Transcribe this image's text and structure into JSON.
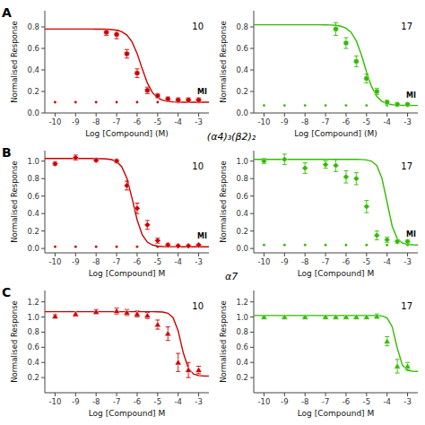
{
  "chart_data": [
    {
      "type": "scatter",
      "title": "A",
      "xlabel": "Log [Compound] (M)",
      "ylabel": "Normalised Response",
      "xlim": [
        -10.5,
        -2.5
      ],
      "ylim": [
        0.0,
        0.95
      ],
      "xticks": [
        -10,
        -9,
        -8,
        -7,
        -6,
        -5,
        -4,
        -3
      ],
      "yticks": [
        {
          "value": 0,
          "label": "0.0"
        },
        0.2,
        0.4,
        0.6,
        0.8
      ],
      "annotations": [
        {
          "text": "10"
        }
      ],
      "series": [
        {
          "name": "MI",
          "type": "scatter",
          "marker": "dot",
          "color": "#cc0000",
          "x": [
            -10,
            -9,
            -8,
            -7,
            -6,
            -5,
            -4,
            -3
          ],
          "values": [
            0.1,
            0.1,
            0.1,
            0.1,
            0.1,
            0.1,
            0.1,
            0.1
          ]
        },
        {
          "type": "line",
          "color": "#cc0000",
          "x": [
            -10.5,
            -10.25,
            -10,
            -9.75,
            -9.5,
            -9.25,
            -9,
            -8.75,
            -8.5,
            -8.25,
            -8,
            -7.75,
            -7.5,
            -7.25,
            -7,
            -6.75,
            -6.5,
            -6.25,
            -6,
            -5.75,
            -5.5,
            -5.25,
            -5,
            -4.75,
            -4.5,
            -4.25,
            -4,
            -3.75,
            -3.5,
            -3.25,
            -3,
            -2.75,
            -2.5
          ],
          "values": [
            0.78,
            0.78,
            0.78,
            0.78,
            0.78,
            0.78,
            0.78,
            0.78,
            0.7799,
            0.7799,
            0.7797,
            0.7792,
            0.7781,
            0.7755,
            0.7694,
            0.7554,
            0.7244,
            0.6614,
            0.553,
            0.4107,
            0.2781,
            0.1885,
            0.1404,
            0.1176,
            0.1075,
            0.1032,
            0.1014,
            0.1006,
            0.1002,
            0.1001,
            0.1,
            0.1,
            0.1
          ]
        },
        {
          "type": "scatter",
          "marker": "circle",
          "color": "#cc0000",
          "x": [
            -7.5,
            -7.0,
            -6.5,
            -6.0,
            -5.5,
            -5.0,
            -4.5,
            -4.0,
            -3.5,
            -3.0
          ],
          "values": [
            0.75,
            0.73,
            0.55,
            0.37,
            0.21,
            0.16,
            0.13,
            0.12,
            0.12,
            0.12
          ],
          "errors": [
            0.03,
            0.04,
            0.04,
            0.04,
            0.03,
            0.02,
            0.02,
            0.02,
            0.02,
            0.02
          ]
        }
      ]
    },
    {
      "type": "scatter",
      "xlabel": "Log [Compound] (M)",
      "ylabel": "Normalised Response",
      "xlim": [
        -10.5,
        -2.5
      ],
      "ylim": [
        0.0,
        0.95
      ],
      "xticks": [
        -10,
        -9,
        -8,
        -7,
        -6,
        -5,
        -4,
        -3
      ],
      "yticks": [
        {
          "value": 0,
          "label": "0.0"
        },
        0.2,
        0.4,
        0.6,
        0.8
      ],
      "annotations": [
        {
          "text": "17"
        }
      ],
      "series": [
        {
          "name": "MI",
          "type": "scatter",
          "marker": "dot",
          "color": "#33bb00",
          "x": [
            -10,
            -9,
            -8,
            -7,
            -6,
            -5,
            -4,
            -3
          ],
          "values": [
            0.07,
            0.07,
            0.07,
            0.07,
            0.07,
            0.07,
            0.07,
            0.07
          ]
        },
        {
          "type": "line",
          "color": "#33bb00",
          "x": [
            -10.5,
            -10.25,
            -10,
            -9.75,
            -9.5,
            -9.25,
            -9,
            -8.75,
            -8.5,
            -8.25,
            -8,
            -7.75,
            -7.5,
            -7.25,
            -7,
            -6.75,
            -6.5,
            -6.25,
            -6,
            -5.75,
            -5.5,
            -5.25,
            -5,
            -4.75,
            -4.5,
            -4.25,
            -4,
            -3.75,
            -3.5,
            -3.25,
            -3,
            -2.75,
            -2.5
          ],
          "values": [
            0.82,
            0.82,
            0.82,
            0.82,
            0.82,
            0.82,
            0.82,
            0.82,
            0.82,
            0.82,
            0.82,
            0.8199,
            0.8198,
            0.8196,
            0.8189,
            0.8175,
            0.8141,
            0.8061,
            0.7879,
            0.7482,
            0.6694,
            0.54,
            0.3809,
            0.2424,
            0.1539,
            0.1078,
            0.0864,
            0.077,
            0.073,
            0.0713,
            0.0705,
            0.0702,
            0.0701
          ]
        },
        {
          "type": "scatter",
          "marker": "circle",
          "color": "#33bb00",
          "x": [
            -6.5,
            -6.0,
            -5.5,
            -5.0,
            -4.5,
            -4.0,
            -3.5,
            -3.0
          ],
          "values": [
            0.78,
            0.65,
            0.48,
            0.32,
            0.2,
            0.1,
            0.08,
            0.08
          ],
          "errors": [
            0.06,
            0.05,
            0.05,
            0.04,
            0.03,
            0.02,
            0.01,
            0.01
          ]
        }
      ]
    },
    {
      "type": "scatter",
      "title": "B",
      "subtitle": "(α4)₃(β2)₂",
      "xlabel": "Log [Compound] M",
      "ylabel": "Normalised Response",
      "xlim": [
        -10.5,
        -2.5
      ],
      "ylim": [
        -0.05,
        1.12
      ],
      "xticks": [
        -10,
        -9,
        -8,
        -7,
        -6,
        -5,
        -4,
        -3
      ],
      "yticks": [
        {
          "value": 0,
          "label": "0.0"
        },
        0.2,
        0.4,
        0.6,
        0.8,
        {
          "value": 1,
          "label": "1.0"
        }
      ],
      "annotations": [
        {
          "text": "10"
        }
      ],
      "series": [
        {
          "name": "MI",
          "type": "scatter",
          "marker": "dot",
          "color": "#cc0000",
          "x": [
            -10,
            -9,
            -8,
            -7,
            -6,
            -5,
            -4,
            -3
          ],
          "values": [
            0.02,
            0.02,
            0.02,
            0.02,
            0.02,
            0.02,
            0.02,
            0.02
          ]
        },
        {
          "type": "line",
          "color": "#cc0000",
          "x": [
            -10.5,
            -10.25,
            -10,
            -9.75,
            -9.5,
            -9.25,
            -9,
            -8.75,
            -8.5,
            -8.25,
            -8,
            -7.75,
            -7.5,
            -7.25,
            -7,
            -6.75,
            -6.5,
            -6.25,
            -6,
            -5.75,
            -5.5,
            -5.25,
            -5,
            -4.75,
            -4.5,
            -4.25,
            -4,
            -3.75,
            -3.5,
            -3.25,
            -3,
            -2.75,
            -2.5
          ],
          "values": [
            1.03,
            1.03,
            1.03,
            1.03,
            1.03,
            1.03,
            1.03,
            1.03,
            1.0299,
            1.0298,
            1.0294,
            1.0284,
            1.0254,
            1.0172,
            0.9946,
            0.9362,
            0.8039,
            0.5771,
            0.3269,
            0.1555,
            0.0726,
            0.0393,
            0.0269,
            0.0225,
            0.0209,
            0.0203,
            0.0201,
            0.02,
            0.02,
            0.02,
            0.02,
            0.02,
            0.02
          ]
        },
        {
          "type": "scatter",
          "marker": "diamond",
          "color": "#cc0000",
          "x": [
            -10,
            -9,
            -8,
            -7,
            -6.5,
            -6,
            -5.5,
            -5,
            -4.5,
            -4,
            -3.5,
            -3
          ],
          "values": [
            0.97,
            1.04,
            1.01,
            1.0,
            0.72,
            0.46,
            0.27,
            0.09,
            0.04,
            0.03,
            0.03,
            0.04
          ],
          "errors": [
            0.02,
            0.03,
            0.02,
            0.02,
            0.05,
            0.06,
            0.05,
            0.03,
            0.02,
            0.01,
            0.01,
            0.01
          ]
        }
      ]
    },
    {
      "type": "scatter",
      "xlabel": "Log [Compound] M",
      "ylabel": "Normalised Response",
      "xlim": [
        -10.5,
        -2.5
      ],
      "ylim": [
        -0.05,
        1.12
      ],
      "xticks": [
        -10,
        -9,
        -8,
        -7,
        -6,
        -5,
        -4,
        -3
      ],
      "yticks": [
        {
          "value": 0,
          "label": "0.0"
        },
        0.2,
        0.4,
        0.6,
        0.8,
        {
          "value": 1,
          "label": "1.0"
        }
      ],
      "annotations": [
        {
          "text": "17"
        }
      ],
      "series": [
        {
          "name": "MI",
          "type": "scatter",
          "marker": "dot",
          "color": "#33bb00",
          "x": [
            -10,
            -9,
            -8,
            -7,
            -6,
            -5,
            -4,
            -3
          ],
          "values": [
            0.04,
            0.04,
            0.04,
            0.04,
            0.04,
            0.04,
            0.04,
            0.04
          ]
        },
        {
          "type": "line",
          "color": "#33bb00",
          "x": [
            -10.5,
            -10.25,
            -10,
            -9.75,
            -9.5,
            -9.25,
            -9,
            -8.75,
            -8.5,
            -8.25,
            -8,
            -7.75,
            -7.5,
            -7.25,
            -7,
            -6.75,
            -6.5,
            -6.25,
            -6,
            -5.75,
            -5.5,
            -5.25,
            -5,
            -4.75,
            -4.5,
            -4.25,
            -4,
            -3.75,
            -3.5,
            -3.25,
            -3,
            -2.75,
            -2.5
          ],
          "values": [
            1.02,
            1.02,
            1.02,
            1.02,
            1.02,
            1.02,
            1.02,
            1.02,
            1.02,
            1.02,
            1.02,
            1.02,
            1.02,
            1.02,
            1.02,
            1.02,
            1.02,
            1.02,
            1.02,
            1.0199,
            1.0195,
            1.0183,
            1.0139,
            0.9985,
            0.9479,
            0.8045,
            0.53,
            0.2555,
            0.1121,
            0.0615,
            0.0461,
            0.0417,
            0.0405
          ]
        },
        {
          "type": "scatter",
          "marker": "diamond",
          "color": "#33bb00",
          "x": [
            -10,
            -9,
            -8,
            -7,
            -6.5,
            -6,
            -5.5,
            -5,
            -4.5,
            -4,
            -3.5,
            -3
          ],
          "values": [
            1.0,
            1.02,
            0.92,
            0.96,
            0.95,
            0.82,
            0.8,
            0.48,
            0.15,
            0.1,
            0.08,
            0.08
          ],
          "errors": [
            0.03,
            0.06,
            0.06,
            0.04,
            0.07,
            0.07,
            0.07,
            0.07,
            0.05,
            0.03,
            0.02,
            0.02
          ]
        }
      ]
    },
    {
      "type": "scatter",
      "title": "C",
      "subtitle": "α7",
      "xlabel": "Log [Compound] M",
      "ylabel": "Normalised Response",
      "xlim": [
        -10.5,
        -2.5
      ],
      "ylim": [
        0.0,
        1.35
      ],
      "xticks": [
        -10,
        -9,
        -8,
        -7,
        -6,
        -5,
        -4,
        -3
      ],
      "yticks": [
        0.2,
        0.4,
        0.6,
        0.8,
        {
          "value": 1,
          "label": "1.0"
        },
        1.2
      ],
      "annotations": [
        {
          "text": "10"
        }
      ],
      "series": [
        {
          "type": "line",
          "color": "#cc0000",
          "x": [
            -10.5,
            -10.25,
            -10,
            -9.75,
            -9.5,
            -9.25,
            -9,
            -8.75,
            -8.5,
            -8.25,
            -8,
            -7.75,
            -7.5,
            -7.25,
            -7,
            -6.75,
            -6.5,
            -6.25,
            -6,
            -5.75,
            -5.5,
            -5.25,
            -5,
            -4.75,
            -4.5,
            -4.25,
            -4,
            -3.75,
            -3.5,
            -3.25,
            -3,
            -2.75,
            -2.5
          ],
          "values": [
            1.07,
            1.07,
            1.07,
            1.07,
            1.07,
            1.07,
            1.07,
            1.07,
            1.07,
            1.07,
            1.07,
            1.07,
            1.07,
            1.07,
            1.07,
            1.07,
            1.07,
            1.07,
            1.07,
            1.07,
            1.0699,
            1.0697,
            1.0689,
            1.0652,
            1.0503,
            0.9927,
            0.8179,
            0.5259,
            0.32,
            0.2461,
            0.2263,
            0.2215,
            0.2204
          ]
        },
        {
          "type": "scatter",
          "marker": "triangle",
          "color": "#cc0000",
          "x": [
            -10,
            -9,
            -8,
            -7,
            -6.5,
            -6,
            -5.5,
            -5,
            -4.5,
            -4,
            -3.5,
            -3
          ],
          "values": [
            1.01,
            1.04,
            1.07,
            1.08,
            1.06,
            1.04,
            1.02,
            0.9,
            0.78,
            0.4,
            0.3,
            0.3
          ],
          "errors": [
            0.02,
            0.03,
            0.03,
            0.04,
            0.04,
            0.04,
            0.04,
            0.06,
            0.09,
            0.12,
            0.1,
            0.05
          ]
        }
      ]
    },
    {
      "type": "scatter",
      "xlabel": "Log [Compound] M",
      "ylabel": "Normalised Response",
      "xlim": [
        -10.5,
        -2.5
      ],
      "ylim": [
        0.0,
        1.35
      ],
      "xticks": [
        -10,
        -9,
        -8,
        -7,
        -6,
        -5,
        -4,
        -3
      ],
      "yticks": [
        0.2,
        0.4,
        0.6,
        0.8,
        {
          "value": 1,
          "label": "1.0"
        },
        1.2
      ],
      "annotations": [
        {
          "text": "17"
        }
      ],
      "series": [
        {
          "type": "line",
          "color": "#33bb00",
          "x": [
            -10.5,
            -10.25,
            -10,
            -9.75,
            -9.5,
            -9.25,
            -9,
            -8.75,
            -8.5,
            -8.25,
            -8,
            -7.75,
            -7.5,
            -7.25,
            -7,
            -6.75,
            -6.5,
            -6.25,
            -6,
            -5.75,
            -5.5,
            -5.25,
            -5,
            -4.75,
            -4.5,
            -4.25,
            -4,
            -3.75,
            -3.5,
            -3.25,
            -3,
            -2.75,
            -2.5
          ],
          "values": [
            1.02,
            1.02,
            1.02,
            1.02,
            1.02,
            1.02,
            1.02,
            1.02,
            1.02,
            1.02,
            1.02,
            1.02,
            1.02,
            1.02,
            1.02,
            1.02,
            1.02,
            1.02,
            1.02,
            1.02,
            1.02,
            1.02,
            1.02,
            1.0198,
            1.019,
            1.0142,
            0.9884,
            0.8714,
            0.5867,
            0.3627,
            0.2962,
            0.2829,
            0.2805
          ]
        },
        {
          "type": "scatter",
          "marker": "triangle",
          "color": "#33bb00",
          "x": [
            -10,
            -9,
            -8,
            -7,
            -6.5,
            -6,
            -5.5,
            -5,
            -4.5,
            -4,
            -3.5,
            -3
          ],
          "values": [
            1.0,
            1.0,
            1.0,
            1.0,
            1.0,
            1.0,
            1.0,
            1.0,
            1.01,
            0.68,
            0.35,
            0.35
          ],
          "errors": [
            0.01,
            0.01,
            0.01,
            0.01,
            0.01,
            0.01,
            0.02,
            0.02,
            0.03,
            0.06,
            0.09,
            0.05
          ]
        }
      ]
    }
  ]
}
